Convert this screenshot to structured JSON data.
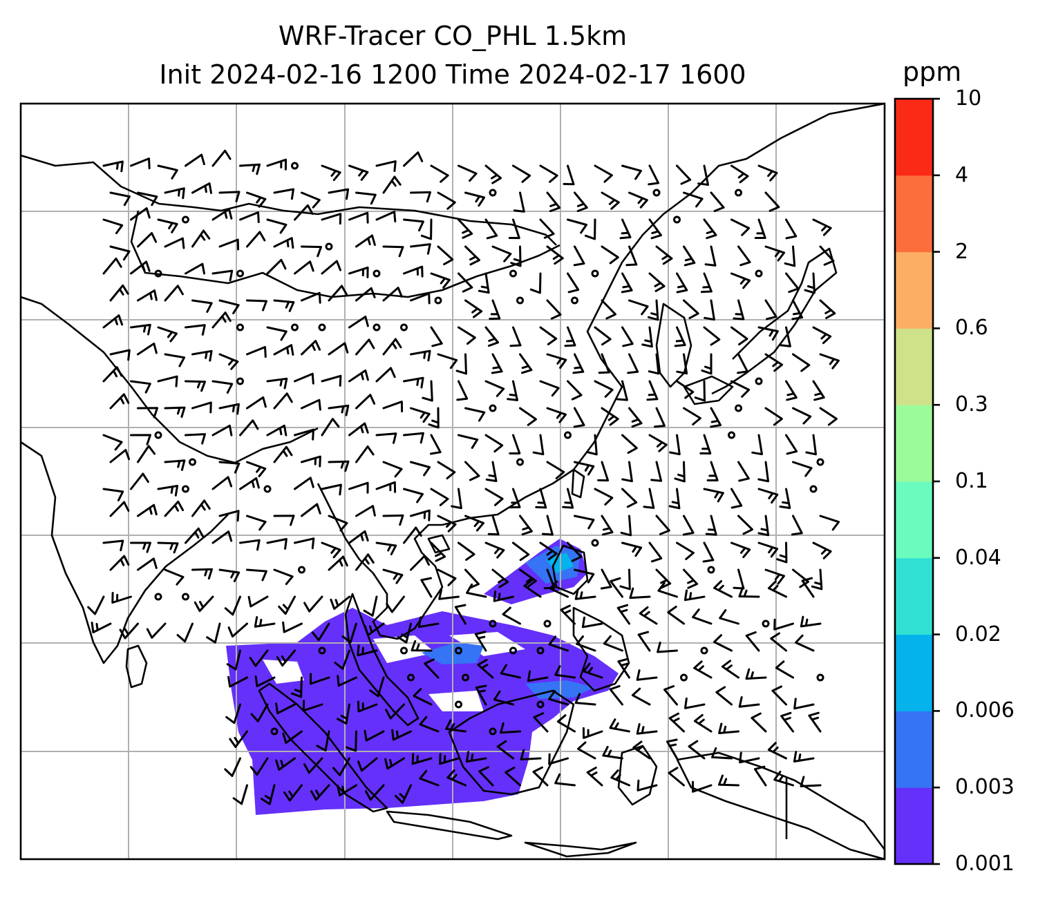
{
  "title_line1": "WRF-Tracer CO_PHL 1.5km",
  "title_line2": "Init 2024-02-16 1200 Time 2024-02-17 1600",
  "colorbar": {
    "unit": "ppm",
    "levels": [
      "0.001",
      "0.003",
      "0.006",
      "0.02",
      "0.04",
      "0.1",
      "0.3",
      "0.6",
      "2",
      "4",
      "10"
    ],
    "colors": [
      "#6530fa",
      "#3474f5",
      "#04b2ec",
      "#30e0d2",
      "#6afbbf",
      "#9cfb99",
      "#cfe28a",
      "#fcae64",
      "#fc6e3c",
      "#fb2a17"
    ]
  },
  "plume_colors": {
    "low": "#6530fa",
    "mid": "#3474f5",
    "high": "#04b2ec"
  },
  "map_features": [
    "coastlines",
    "country borders",
    "lat-lon gridlines",
    "wind barbs",
    "calm-wind circles"
  ]
}
